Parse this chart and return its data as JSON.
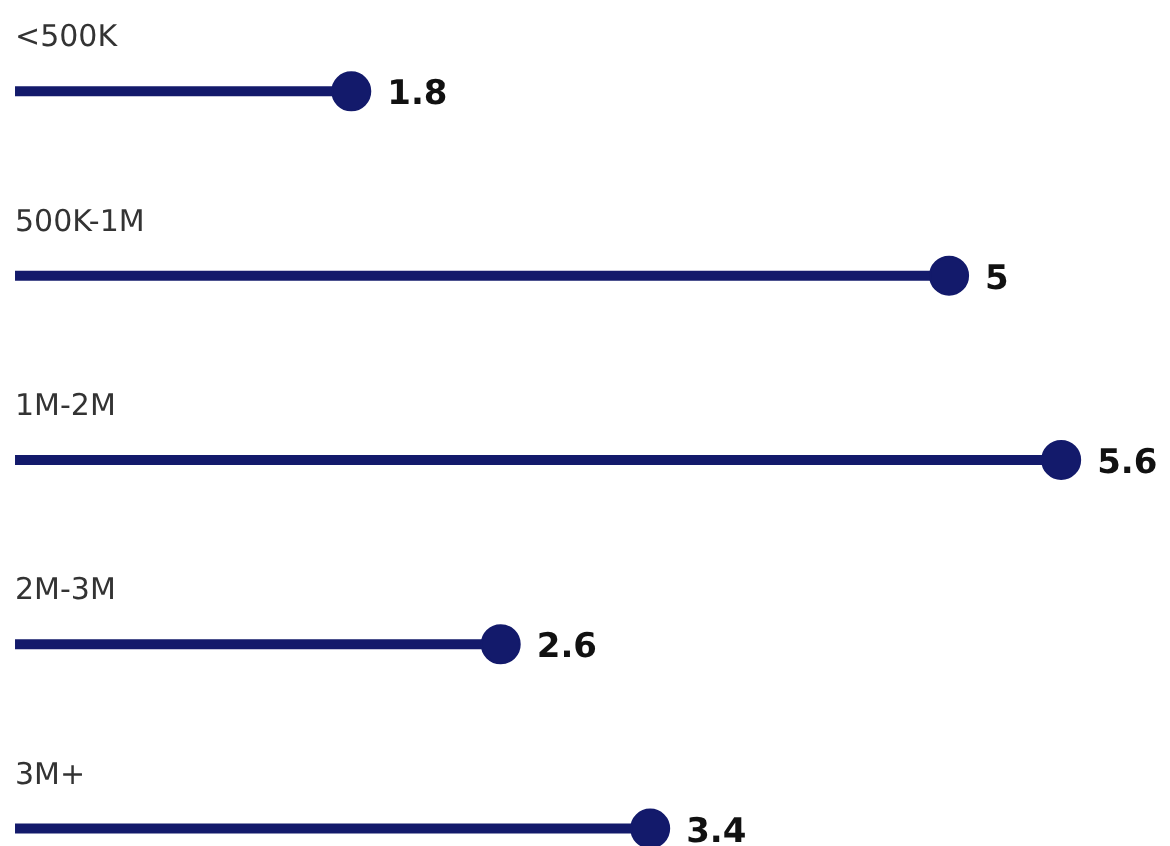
{
  "chart_data": {
    "type": "lollipop",
    "orientation": "horizontal",
    "categories": [
      "<500K",
      "500K-1M",
      "1M-2M",
      "2M-3M",
      "3M+"
    ],
    "values": [
      1.8,
      5,
      5.6,
      2.6,
      3.4
    ],
    "color": "#131a6b",
    "data_labels": true
  }
}
